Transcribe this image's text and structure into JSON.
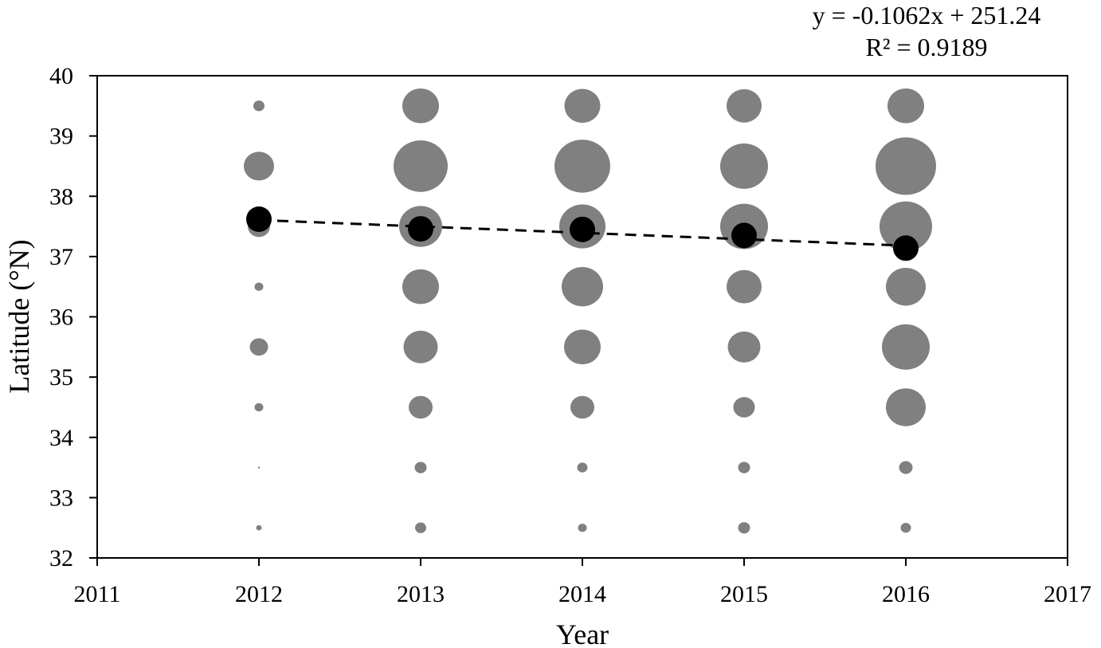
{
  "chart_data": {
    "type": "scatter",
    "xlabel": "Year",
    "ylabel": "Latitude (°N)",
    "xlim": [
      2011,
      2017
    ],
    "ylim": [
      32,
      40
    ],
    "x_ticks": [
      2011,
      2012,
      2013,
      2014,
      2015,
      2016,
      2017
    ],
    "y_ticks": [
      32,
      33,
      34,
      35,
      36,
      37,
      38,
      39,
      40
    ],
    "grid": false,
    "legend": "none",
    "bubble_color": "#808080",
    "mean_color": "#000000",
    "trend_color": "#000000",
    "annotations": [
      "y = -0.1062x + 251.24",
      "R² = 0.9189"
    ],
    "series": [
      {
        "kind": "bubble",
        "points": [
          {
            "x": 2012,
            "y": 39.5,
            "size": 7
          },
          {
            "x": 2012,
            "y": 38.5,
            "size": 19
          },
          {
            "x": 2012,
            "y": 37.5,
            "size": 14
          },
          {
            "x": 2012,
            "y": 36.5,
            "size": 5.5
          },
          {
            "x": 2012,
            "y": 35.5,
            "size": 11.5
          },
          {
            "x": 2012,
            "y": 34.5,
            "size": 5.5
          },
          {
            "x": 2012,
            "y": 33.5,
            "size": 1.2
          },
          {
            "x": 2012,
            "y": 32.5,
            "size": 3.5
          },
          {
            "x": 2013,
            "y": 39.5,
            "size": 23
          },
          {
            "x": 2013,
            "y": 38.5,
            "size": 34
          },
          {
            "x": 2013,
            "y": 37.5,
            "size": 27
          },
          {
            "x": 2013,
            "y": 36.5,
            "size": 23
          },
          {
            "x": 2013,
            "y": 35.5,
            "size": 21.5
          },
          {
            "x": 2013,
            "y": 34.5,
            "size": 15
          },
          {
            "x": 2013,
            "y": 33.5,
            "size": 7.5
          },
          {
            "x": 2013,
            "y": 32.5,
            "size": 7
          },
          {
            "x": 2014,
            "y": 39.5,
            "size": 22.5
          },
          {
            "x": 2014,
            "y": 38.5,
            "size": 35
          },
          {
            "x": 2014,
            "y": 37.5,
            "size": 29
          },
          {
            "x": 2014,
            "y": 36.5,
            "size": 26
          },
          {
            "x": 2014,
            "y": 35.5,
            "size": 23
          },
          {
            "x": 2014,
            "y": 34.5,
            "size": 15
          },
          {
            "x": 2014,
            "y": 33.5,
            "size": 6.5
          },
          {
            "x": 2014,
            "y": 32.5,
            "size": 5.5
          },
          {
            "x": 2015,
            "y": 39.5,
            "size": 22
          },
          {
            "x": 2015,
            "y": 38.5,
            "size": 30
          },
          {
            "x": 2015,
            "y": 37.5,
            "size": 30
          },
          {
            "x": 2015,
            "y": 36.5,
            "size": 22
          },
          {
            "x": 2015,
            "y": 35.5,
            "size": 20.5
          },
          {
            "x": 2015,
            "y": 34.5,
            "size": 13.5
          },
          {
            "x": 2015,
            "y": 33.5,
            "size": 7.5
          },
          {
            "x": 2015,
            "y": 32.5,
            "size": 7.5
          },
          {
            "x": 2016,
            "y": 39.5,
            "size": 23
          },
          {
            "x": 2016,
            "y": 38.5,
            "size": 38
          },
          {
            "x": 2016,
            "y": 37.5,
            "size": 33
          },
          {
            "x": 2016,
            "y": 36.5,
            "size": 25
          },
          {
            "x": 2016,
            "y": 35.5,
            "size": 30
          },
          {
            "x": 2016,
            "y": 34.5,
            "size": 25
          },
          {
            "x": 2016,
            "y": 33.5,
            "size": 8.5
          },
          {
            "x": 2016,
            "y": 32.5,
            "size": 6.5
          }
        ]
      },
      {
        "kind": "mean",
        "points": [
          {
            "x": 2012,
            "y": 37.62
          },
          {
            "x": 2013,
            "y": 37.46
          },
          {
            "x": 2014,
            "y": 37.45
          },
          {
            "x": 2015,
            "y": 37.35
          },
          {
            "x": 2016,
            "y": 37.14
          }
        ]
      }
    ],
    "trendline": {
      "x": [
        2012,
        2016
      ],
      "y": [
        37.6056,
        37.1808
      ],
      "style": "dashed"
    }
  }
}
